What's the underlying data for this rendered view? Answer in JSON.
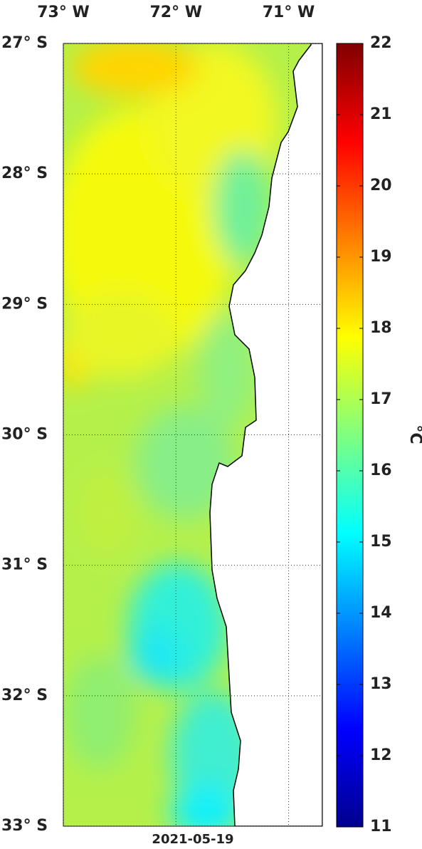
{
  "map": {
    "xlim": [
      -73,
      -70.7
    ],
    "ylim": [
      -33,
      -27
    ],
    "xticks": [
      {
        "value": -73,
        "label": "73° W"
      },
      {
        "value": -72,
        "label": "72° W"
      },
      {
        "value": -71,
        "label": "71° W"
      }
    ],
    "yticks": [
      {
        "value": -27,
        "label": "27° S"
      },
      {
        "value": -28,
        "label": "28° S"
      },
      {
        "value": -29,
        "label": "29° S"
      },
      {
        "value": -30,
        "label": "30° S"
      },
      {
        "value": -31,
        "label": "31° S"
      },
      {
        "value": -32,
        "label": "32° S"
      },
      {
        "value": -33,
        "label": "33° S"
      }
    ],
    "date": "2021-05-19"
  },
  "colorbar": {
    "label": "°C",
    "lim": [
      11,
      22
    ],
    "ticks": [
      11,
      12,
      13,
      14,
      15,
      16,
      17,
      18,
      19,
      20,
      21,
      22
    ]
  }
}
